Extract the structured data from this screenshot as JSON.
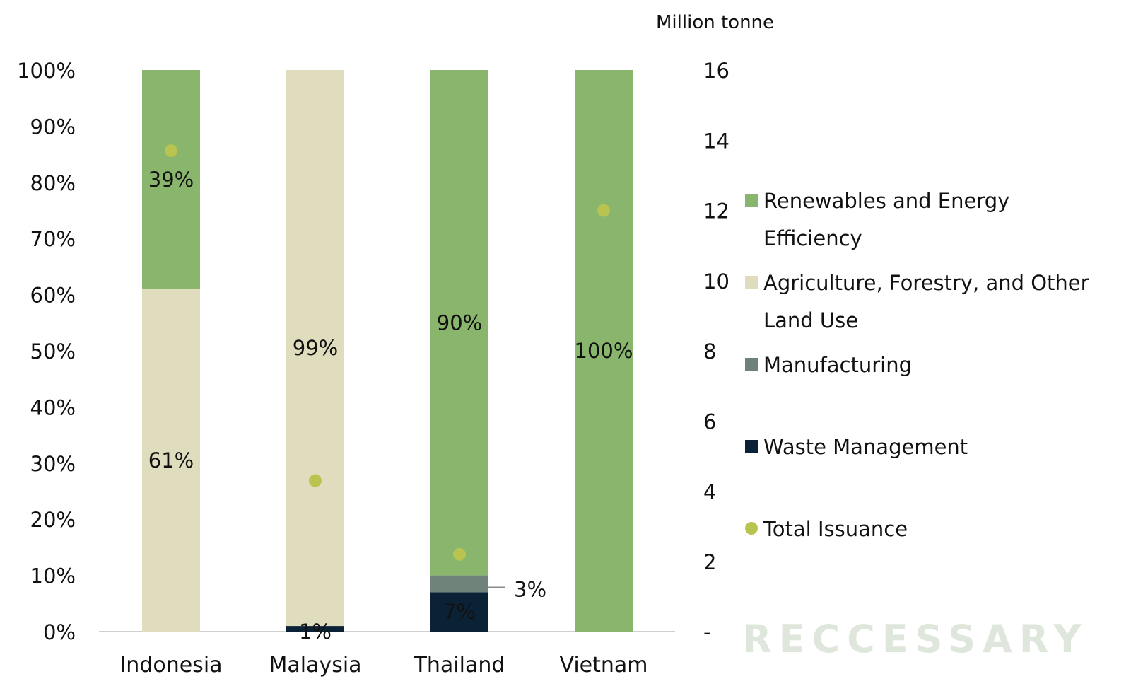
{
  "chart_data": {
    "type": "bar",
    "stacked": true,
    "percent": true,
    "categories": [
      "Indonesia",
      "Malaysia",
      "Thailand",
      "Vietnam"
    ],
    "series": [
      {
        "name": "Renewables and Energy Efficiency",
        "color": "#8ab56c",
        "values": [
          39,
          0,
          90,
          100
        ],
        "labels": [
          "39%",
          "",
          "90%",
          "100%"
        ]
      },
      {
        "name": "Agriculture, Forestry, and Other Land Use",
        "color": "#e0ddbf",
        "values": [
          61,
          99,
          0,
          0
        ],
        "labels": [
          "61%",
          "99%",
          "",
          ""
        ]
      },
      {
        "name": "Manufacturing",
        "color": "#6f8279",
        "values": [
          0,
          0,
          3,
          0
        ],
        "labels": [
          "",
          "",
          "3%",
          ""
        ]
      },
      {
        "name": "Waste Management",
        "color": "#0b2236",
        "values": [
          0,
          1,
          7,
          0
        ],
        "labels": [
          "",
          "1%",
          "7%",
          ""
        ]
      }
    ],
    "total_issuance": {
      "name": "Total Issuance",
      "color": "#b9c450",
      "values": [
        13.7,
        4.3,
        2.2,
        12.0
      ]
    },
    "y_left": {
      "ticks": [
        "0%",
        "10%",
        "20%",
        "30%",
        "40%",
        "50%",
        "60%",
        "70%",
        "80%",
        "90%",
        "100%"
      ],
      "range": [
        0,
        100
      ]
    },
    "y_right": {
      "label": "Million tonne",
      "ticks": [
        "-",
        "2",
        "4",
        "6",
        "8",
        "10",
        "12",
        "14",
        "16"
      ],
      "range": [
        0,
        16
      ]
    },
    "legend_position": "right"
  },
  "legend": {
    "items": [
      {
        "lines": [
          "Renewables and Energy",
          "Efficiency"
        ],
        "color": "#8ab56c",
        "marker": "square"
      },
      {
        "lines": [
          "Agriculture, Forestry, and Other",
          "Land Use"
        ],
        "color": "#e0ddbf",
        "marker": "square"
      },
      {
        "lines": [
          "Manufacturing"
        ],
        "color": "#6f8279",
        "marker": "square"
      },
      {
        "lines": [
          "Waste Management"
        ],
        "color": "#0b2236",
        "marker": "square"
      },
      {
        "lines": [
          "Total Issuance"
        ],
        "color": "#b9c450",
        "marker": "dot"
      }
    ]
  },
  "watermark": "RECCESSARY"
}
